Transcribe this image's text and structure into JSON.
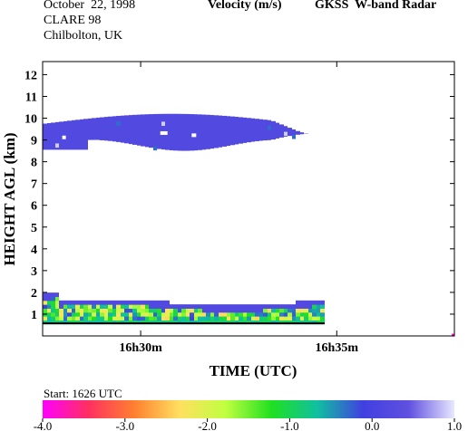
{
  "header": {
    "date": "October  22, 1998",
    "campaign": "CLARE 98",
    "location": "Chilbolton, UK",
    "quantity": "Velocity (m/s)",
    "instrument": "GKSS  W-band Radar"
  },
  "chart_data": {
    "type": "heatmap",
    "title": "Velocity (m/s)",
    "xlabel": "TIME (UTC)",
    "ylabel": "HEIGHT AGL (km)",
    "x_unit": "minutes after 16h00 UTC",
    "xlim": [
      27.5,
      38.0
    ],
    "ylim": [
      0,
      12.6
    ],
    "x_ticks": [
      {
        "value": 30,
        "label": "16h30m"
      },
      {
        "value": 35,
        "label": "16h35m"
      }
    ],
    "y_ticks": [
      1,
      2,
      3,
      4,
      5,
      6,
      7,
      8,
      9,
      10,
      11,
      12
    ],
    "grid": false,
    "start_note": "Start: 1626 UTC",
    "colorbar": {
      "min": -4.0,
      "max": 1.0,
      "ticks": [
        "-4.0",
        "-3.0",
        "-2.0",
        "-1.0",
        "0.0",
        "1.0"
      ],
      "colors": [
        "#ff00ff",
        "#ff3060",
        "#ff8030",
        "#ffe060",
        "#c0ff40",
        "#20e020",
        "#10c0a0",
        "#4040e0",
        "#6050e0",
        "#e8e8ff"
      ]
    },
    "regions": [
      {
        "name": "upper cloud",
        "x_start": 27.5,
        "x_end": 34.3,
        "height_range_km": [
          8.5,
          10.3
        ],
        "dominant_velocity_ms": 0.2
      },
      {
        "name": "lower layer",
        "x_start": 27.5,
        "x_end": 34.6,
        "height_range_km": [
          0.5,
          1.9
        ],
        "velocity_range_ms": [
          -2.5,
          0.3
        ]
      }
    ]
  }
}
